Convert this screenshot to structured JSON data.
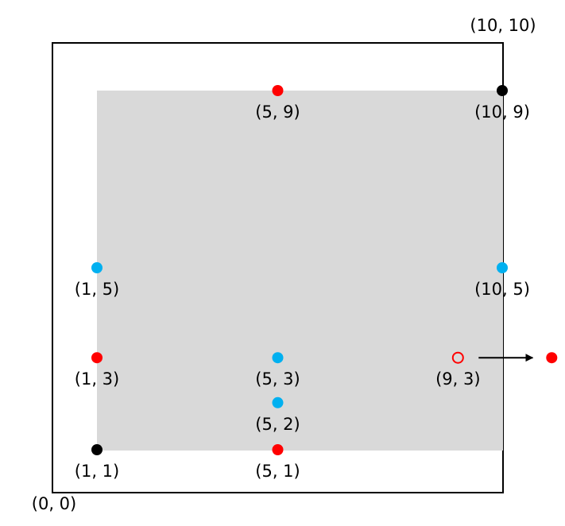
{
  "diagram": {
    "corner_labels": {
      "origin": "(0, 0)",
      "top_right": "(10, 10)"
    },
    "colors": {
      "red": "#ff0000",
      "blue": "#00b0f0",
      "black": "#000000",
      "region": "#d9d9d9",
      "frame": "#000000"
    },
    "points": [
      {
        "id": "p-5-9",
        "x": 5,
        "y": 9,
        "label": "(5, 9)",
        "color": "red",
        "style": "filled",
        "label_pos": "below"
      },
      {
        "id": "p-10-9",
        "x": 10,
        "y": 9,
        "label": "(10, 9)",
        "color": "black",
        "style": "filled",
        "label_pos": "below"
      },
      {
        "id": "p-1-5",
        "x": 1,
        "y": 5,
        "label": "(1, 5)",
        "color": "blue",
        "style": "filled",
        "label_pos": "below"
      },
      {
        "id": "p-10-5",
        "x": 10,
        "y": 5,
        "label": "(10, 5)",
        "color": "blue",
        "style": "filled",
        "label_pos": "below"
      },
      {
        "id": "p-1-3",
        "x": 1,
        "y": 3,
        "label": "(1, 3)",
        "color": "red",
        "style": "filled",
        "label_pos": "below"
      },
      {
        "id": "p-5-3",
        "x": 5,
        "y": 3,
        "label": "(5, 3)",
        "color": "blue",
        "style": "filled",
        "label_pos": "below"
      },
      {
        "id": "p-9-3",
        "x": 9,
        "y": 3,
        "label": "(9, 3)",
        "color": "red",
        "style": "hollow",
        "label_pos": "below"
      },
      {
        "id": "p-5-2",
        "x": 5,
        "y": 2,
        "label": "(5, 2)",
        "color": "blue",
        "style": "filled",
        "label_pos": "below"
      },
      {
        "id": "p-1-1",
        "x": 1,
        "y": 1,
        "label": "(1, 1)",
        "color": "black",
        "style": "filled",
        "label_pos": "below"
      },
      {
        "id": "p-5-1",
        "x": 5,
        "y": 1,
        "label": "(5, 1)",
        "color": "red",
        "style": "filled",
        "label_pos": "below"
      }
    ],
    "moved_point": {
      "color": "red",
      "style": "filled",
      "from": "p-9-3",
      "direction": "right"
    }
  }
}
